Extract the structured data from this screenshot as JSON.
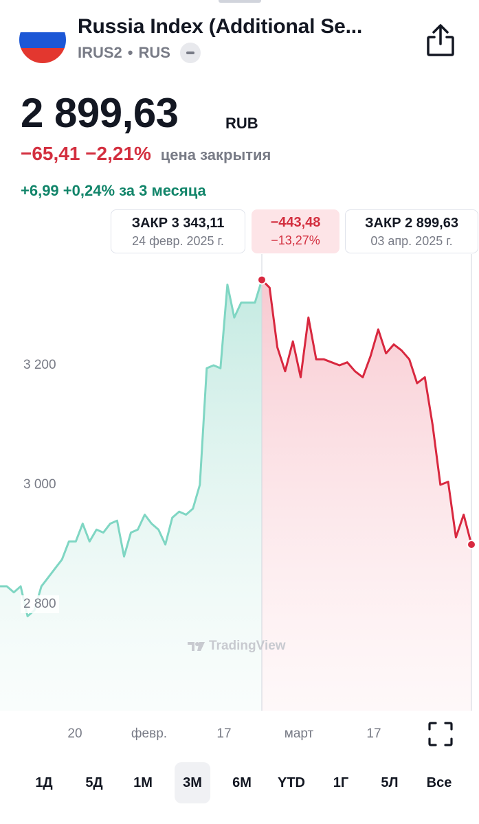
{
  "header": {
    "title": "Russia Index (Additional Se...",
    "symbol": "IRUS2",
    "separator": "•",
    "exchange": "RUS",
    "flag_colors": [
      "#ffffff",
      "#1c57d6",
      "#e3372f"
    ]
  },
  "quote": {
    "price": "2 899,63",
    "currency": "RUB",
    "change_abs": "−65,41",
    "change_pct": "−2,21%",
    "change_note": "цена закрытия",
    "period_change": "+6,99 +0,24% за 3 месяца"
  },
  "range_chips": {
    "start": {
      "line1": "ЗАКР 3 343,11",
      "line2": "24 февр. 2025 г."
    },
    "diff": {
      "line1": "−443,48",
      "line2": "−13,27%"
    },
    "end": {
      "line1": "ЗАКР 2 899,63",
      "line2": "03 апр. 2025 г."
    }
  },
  "chart": {
    "watermark": "TradingView",
    "y_ticks": [
      "3 200",
      "3 000",
      "2 800"
    ],
    "x_ticks": [
      "20",
      "февр.",
      "17",
      "март",
      "17"
    ]
  },
  "chart_data": {
    "type": "area",
    "y_ticks": [
      3200,
      3000,
      2800
    ],
    "selection_start": {
      "date": "24 февр. 2025 г.",
      "close": 3343.11
    },
    "selection_end": {
      "date": "03 апр. 2025 г.",
      "close": 2899.63
    },
    "colors": {
      "up_line": "#7fd6c3",
      "down_line": "#d8283f"
    },
    "series": [
      {
        "values": [
          2830,
          2830,
          2820,
          2830,
          2780,
          2790,
          2830,
          2845,
          2860,
          2875,
          2905,
          2905,
          2935,
          2905,
          2925,
          2920,
          2935,
          2940,
          2880,
          2920,
          2925,
          2950,
          2935,
          2925,
          2900,
          2945,
          2955,
          2950,
          2960,
          3000,
          3195,
          3200,
          3195,
          3335,
          3280,
          3305,
          3305,
          3305,
          3343
        ]
      },
      {
        "values": [
          3343,
          3330,
          3230,
          3190,
          3240,
          3180,
          3280,
          3210,
          3210,
          3205,
          3200,
          3205,
          3190,
          3180,
          3215,
          3260,
          3220,
          3235,
          3225,
          3210,
          3170,
          3180,
          3100,
          3000,
          3005,
          2912,
          2950,
          2900
        ]
      }
    ]
  },
  "tabs": {
    "items": [
      "1Д",
      "5Д",
      "1М",
      "3М",
      "6М",
      "YTD",
      "1Г",
      "5Л",
      "Все"
    ],
    "active": "3М"
  }
}
